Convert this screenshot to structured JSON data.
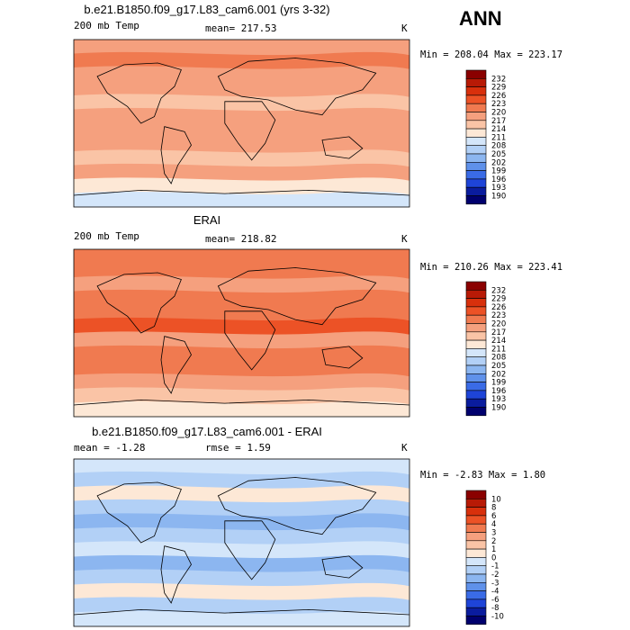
{
  "season": "ANN",
  "chart_data": [
    {
      "type": "heatmap",
      "title": "b.e21.B1850.f09_g17.L83_cam6.001 (yrs 3-32)",
      "variable_label": "200 mb Temp",
      "stat_label": "mean=",
      "stat_value": "217.53",
      "units": "K",
      "min_label": "Min =",
      "min_value": "208.04",
      "max_label": "Max =",
      "max_value": "223.17",
      "colorbar": {
        "levels": [
          "232",
          "229",
          "226",
          "223",
          "220",
          "217",
          "214",
          "211",
          "208",
          "205",
          "202",
          "199",
          "196",
          "193",
          "190"
        ],
        "colors": [
          "#8a0000",
          "#b81a06",
          "#d8300c",
          "#ec5226",
          "#f07a50",
          "#f5a07e",
          "#fac4a6",
          "#fde8d6",
          "#d4e6fa",
          "#b2d0f6",
          "#8cb6f0",
          "#5f91ea",
          "#3a6be6",
          "#1e44d8",
          "#0a1c9e",
          "#00006e"
        ]
      },
      "bands": [
        {
          "level": 5,
          "from": "top"
        },
        {
          "level": 4
        },
        {
          "level": 5
        },
        {
          "level": 5
        },
        {
          "level": 6
        },
        {
          "level": 5
        },
        {
          "level": 5
        },
        {
          "level": 5
        },
        {
          "level": 6
        },
        {
          "level": 6
        },
        {
          "level": 7
        },
        {
          "level": 8
        }
      ]
    },
    {
      "type": "heatmap",
      "title": "ERAI",
      "variable_label": "200 mb Temp",
      "stat_label": "mean=",
      "stat_value": "218.82",
      "units": "K",
      "min_label": "Min =",
      "min_value": "210.26",
      "max_label": "Max =",
      "max_value": "223.41",
      "colorbar": {
        "levels": [
          "232",
          "229",
          "226",
          "223",
          "220",
          "217",
          "214",
          "211",
          "208",
          "205",
          "202",
          "199",
          "196",
          "193",
          "190"
        ],
        "colors": [
          "#8a0000",
          "#b81a06",
          "#d8300c",
          "#ec5226",
          "#f07a50",
          "#f5a07e",
          "#fac4a6",
          "#fde8d6",
          "#d4e6fa",
          "#b2d0f6",
          "#8cb6f0",
          "#5f91ea",
          "#3a6be6",
          "#1e44d8",
          "#0a1c9e",
          "#00006e"
        ]
      }
    },
    {
      "type": "heatmap",
      "title": "b.e21.B1850.f09_g17.L83_cam6.001 - ERAI",
      "stat_label": "mean =",
      "stat_value": "-1.28",
      "rmse_label": "rmse =",
      "rmse_value": "1.59",
      "units": "K",
      "min_label": "Min =",
      "min_value": "-2.83",
      "max_label": "Max =",
      "max_value": "1.80",
      "colorbar": {
        "levels": [
          "10",
          "8",
          "6",
          "4",
          "3",
          "2",
          "1",
          "0",
          "-1",
          "-2",
          "-3",
          "-4",
          "-6",
          "-8",
          "-10"
        ],
        "colors": [
          "#8a0000",
          "#b81a06",
          "#d8300c",
          "#ec5226",
          "#f07a50",
          "#f5a07e",
          "#fac4a6",
          "#fde8d6",
          "#d4e6fa",
          "#b2d0f6",
          "#8cb6f0",
          "#5f91ea",
          "#3a6be6",
          "#1e44d8",
          "#0a1c9e",
          "#00006e"
        ]
      }
    }
  ]
}
